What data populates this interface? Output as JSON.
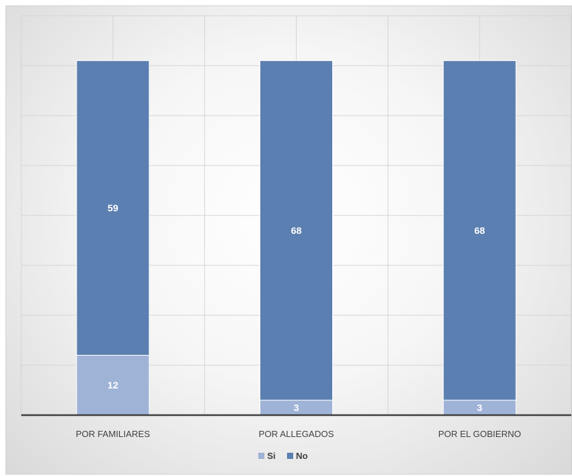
{
  "chart_data": {
    "type": "bar",
    "stacked": true,
    "categories": [
      "POR FAMILIARES",
      "POR ALLEGADOS",
      "POR EL GOBIERNO"
    ],
    "series": [
      {
        "name": "Si",
        "values": [
          12,
          3,
          3
        ],
        "color": "#9fb3d7"
      },
      {
        "name": "No",
        "values": [
          59,
          68,
          68
        ],
        "color": "#5b7fb0"
      }
    ],
    "title": "",
    "xlabel": "",
    "ylabel": "",
    "ylim": [
      0,
      80
    ],
    "grid": true,
    "legend": "bottom-center"
  }
}
